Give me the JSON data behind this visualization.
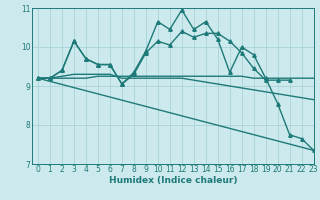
{
  "xlabel": "Humidex (Indice chaleur)",
  "bg_color": "#cce9ed",
  "grid_color": "#aad4d8",
  "line_color": "#1e7a78",
  "xlim": [
    -0.5,
    23
  ],
  "ylim": [
    7,
    11
  ],
  "yticks": [
    7,
    8,
    9,
    10,
    11
  ],
  "xticks": [
    0,
    1,
    2,
    3,
    4,
    5,
    6,
    7,
    8,
    9,
    10,
    11,
    12,
    13,
    14,
    15,
    16,
    17,
    18,
    19,
    20,
    21,
    22,
    23
  ],
  "lines": [
    {
      "x": [
        0,
        1,
        2,
        3,
        4,
        5,
        6,
        7,
        8,
        9,
        10,
        11,
        12,
        13,
        14,
        15,
        16,
        17,
        18,
        19,
        20,
        21,
        22,
        23
      ],
      "y": [
        9.2,
        9.2,
        9.2,
        9.2,
        9.2,
        9.25,
        9.25,
        9.25,
        9.25,
        9.25,
        9.25,
        9.25,
        9.25,
        9.25,
        9.25,
        9.25,
        9.25,
        9.25,
        9.2,
        9.2,
        9.2,
        9.2,
        9.2,
        9.2
      ],
      "marker": null,
      "linewidth": 1.0
    },
    {
      "x": [
        0,
        1,
        2,
        3,
        4,
        5,
        6,
        7,
        8,
        9,
        10,
        11,
        12,
        13,
        14,
        15,
        16,
        17,
        18,
        19,
        20,
        21,
        22,
        23
      ],
      "y": [
        9.2,
        9.2,
        9.25,
        9.3,
        9.3,
        9.3,
        9.3,
        9.2,
        9.2,
        9.2,
        9.2,
        9.2,
        9.2,
        9.15,
        9.1,
        9.05,
        9.0,
        8.95,
        8.9,
        8.85,
        8.8,
        8.75,
        8.7,
        8.65
      ],
      "marker": null,
      "linewidth": 1.0
    },
    {
      "x": [
        0,
        1,
        2,
        3,
        4,
        5,
        6,
        7,
        8,
        9,
        10,
        11,
        12,
        13,
        14,
        15,
        16,
        17,
        18,
        19,
        20,
        21
      ],
      "y": [
        9.2,
        9.2,
        9.4,
        10.15,
        9.7,
        9.55,
        9.55,
        9.05,
        9.3,
        9.85,
        10.15,
        10.05,
        10.4,
        10.25,
        10.35,
        10.35,
        10.15,
        9.85,
        9.45,
        9.15,
        9.15,
        9.15
      ],
      "marker": "^",
      "linewidth": 1.0
    },
    {
      "x": [
        0,
        1,
        2,
        3,
        4,
        5,
        6,
        7,
        8,
        9,
        10,
        11,
        12,
        13,
        14,
        15,
        16,
        17,
        18,
        19,
        20,
        21,
        22,
        23
      ],
      "y": [
        9.2,
        9.2,
        9.4,
        10.15,
        9.7,
        9.55,
        9.55,
        9.05,
        9.35,
        9.9,
        10.65,
        10.45,
        10.95,
        10.45,
        10.65,
        10.2,
        9.35,
        10.0,
        9.8,
        9.2,
        8.55,
        7.75,
        7.65,
        7.35
      ],
      "marker": "^",
      "linewidth": 1.0
    },
    {
      "x": [
        0,
        23
      ],
      "y": [
        9.2,
        7.35
      ],
      "marker": null,
      "linewidth": 1.0
    }
  ]
}
